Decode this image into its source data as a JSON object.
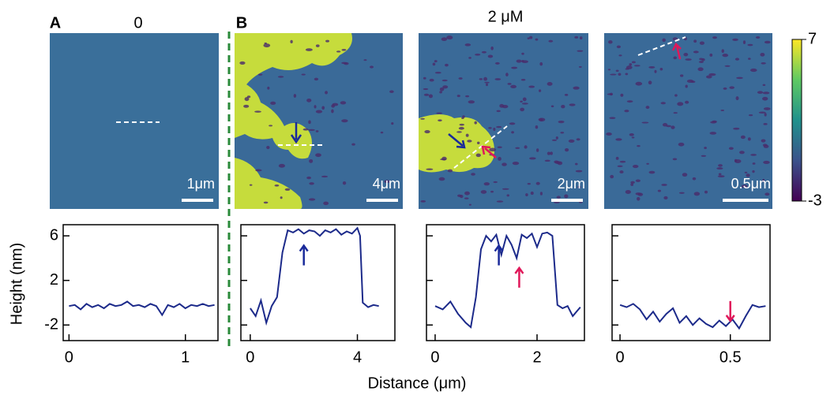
{
  "panel_labels": [
    "A",
    "B"
  ],
  "conditions": [
    "0",
    "2 μM"
  ],
  "scale_bars": [
    "1μm",
    "4μm",
    "2μm",
    "0.5μm"
  ],
  "colorbar": {
    "lim": [
      -3,
      7
    ],
    "ticks": [
      -3,
      7
    ]
  },
  "ylabel": "Height (nm)",
  "xlabel": "Distance (μm)",
  "chart_data": [
    {
      "type": "line",
      "xlim": [
        -0.05,
        1.28
      ],
      "xticks": [
        0,
        1
      ],
      "ylim": [
        -3.4,
        7
      ],
      "yticks": [
        6,
        2,
        -2
      ],
      "x": [
        0,
        0.05,
        0.1,
        0.15,
        0.2,
        0.25,
        0.3,
        0.35,
        0.4,
        0.45,
        0.5,
        0.55,
        0.6,
        0.65,
        0.7,
        0.75,
        0.8,
        0.85,
        0.9,
        0.95,
        1.0,
        1.05,
        1.1,
        1.15,
        1.2,
        1.25
      ],
      "series": [
        {
          "color": "#1c2a8a",
          "values": [
            -0.3,
            -0.2,
            -0.6,
            -0.1,
            -0.4,
            -0.2,
            -0.5,
            -0.1,
            -0.3,
            -0.2,
            0.1,
            -0.3,
            -0.2,
            -0.4,
            -0.1,
            -0.3,
            -1.1,
            -0.2,
            -0.4,
            -0.1,
            -0.5,
            -0.2,
            -0.3,
            -0.1,
            -0.3,
            -0.2
          ]
        }
      ]
    },
    {
      "type": "line",
      "xlim": [
        -0.35,
        5.4
      ],
      "xticks": [
        0,
        4
      ],
      "ylim": [
        -3.4,
        7
      ],
      "yticks": [
        6,
        2,
        -2
      ],
      "x": [
        0,
        0.2,
        0.4,
        0.6,
        0.8,
        1.0,
        1.2,
        1.4,
        1.6,
        1.8,
        2.0,
        2.2,
        2.4,
        2.6,
        2.8,
        3.0,
        3.2,
        3.4,
        3.6,
        3.8,
        4.0,
        4.1,
        4.2,
        4.4,
        4.6,
        4.8
      ],
      "series": [
        {
          "color": "#1c2a8a",
          "values": [
            -0.5,
            -1.2,
            0.2,
            -1.8,
            -0.3,
            0.5,
            4.5,
            6.5,
            6.3,
            6.6,
            6.2,
            6.5,
            6.4,
            6.0,
            6.5,
            6.3,
            6.6,
            6.1,
            6.4,
            6.2,
            6.7,
            6.0,
            0.0,
            -0.4,
            -0.2,
            -0.3
          ]
        }
      ]
    },
    {
      "type": "line",
      "xlim": [
        -0.17,
        2.93
      ],
      "xticks": [
        0,
        2
      ],
      "ylim": [
        -3.4,
        7
      ],
      "yticks": [
        6,
        2,
        -2
      ],
      "x": [
        0,
        0.15,
        0.3,
        0.45,
        0.6,
        0.7,
        0.8,
        0.9,
        1.0,
        1.1,
        1.2,
        1.3,
        1.4,
        1.5,
        1.6,
        1.7,
        1.8,
        1.9,
        2.0,
        2.1,
        2.2,
        2.3,
        2.4,
        2.5,
        2.6,
        2.7,
        2.85
      ],
      "series": [
        {
          "color": "#1c2a8a",
          "values": [
            -0.3,
            -0.6,
            0.1,
            -1.0,
            -1.8,
            -2.2,
            0.5,
            4.8,
            6.0,
            5.5,
            6.1,
            4.3,
            6.0,
            5.2,
            4.0,
            6.1,
            5.8,
            6.2,
            5.0,
            6.2,
            6.3,
            6.0,
            -0.2,
            -0.5,
            -0.3,
            -1.2,
            -0.4
          ]
        }
      ]
    },
    {
      "type": "line",
      "xlim": [
        -0.036,
        0.68
      ],
      "xticks": [
        0,
        0.5
      ],
      "ylim": [
        -3.4,
        7
      ],
      "yticks": [
        6,
        2,
        -2
      ],
      "x": [
        0,
        0.03,
        0.06,
        0.09,
        0.12,
        0.15,
        0.18,
        0.21,
        0.24,
        0.27,
        0.3,
        0.33,
        0.36,
        0.39,
        0.42,
        0.45,
        0.48,
        0.51,
        0.54,
        0.57,
        0.6,
        0.63,
        0.66
      ],
      "series": [
        {
          "color": "#1c2a8a",
          "values": [
            -0.2,
            -0.4,
            -0.1,
            -0.6,
            -1.5,
            -0.8,
            -1.7,
            -1.0,
            -0.5,
            -1.8,
            -1.2,
            -2.0,
            -1.4,
            -1.9,
            -2.2,
            -1.6,
            -2.1,
            -1.5,
            -2.3,
            -1.2,
            -0.2,
            -0.4,
            -0.3
          ]
        }
      ]
    }
  ]
}
